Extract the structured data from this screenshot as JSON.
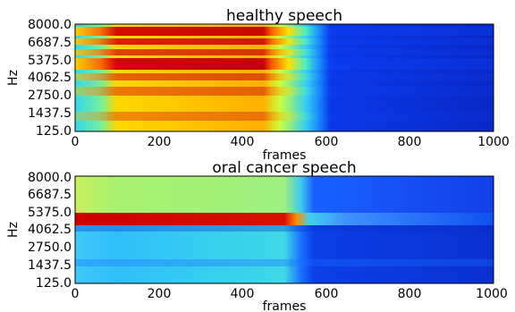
{
  "chart_data": [
    {
      "type": "heatmap",
      "title": "healthy speech",
      "xlabel": "frames",
      "ylabel": "Hz",
      "xlim": [
        0,
        1000
      ],
      "ylim": [
        125.0,
        8000.0
      ],
      "x_ticks": [
        "0",
        "200",
        "400",
        "600",
        "800",
        "1000"
      ],
      "y_ticks": [
        "8000.0",
        "6687.5",
        "5375.0",
        "4062.5",
        "2750.0",
        "1437.5",
        "125.0"
      ],
      "colormap": "jet",
      "grid": false,
      "description_regions": [
        {
          "frames": [
            0,
            60
          ],
          "intensity": "mixed medium (cyan/yellow/red bands)"
        },
        {
          "frames": [
            60,
            480
          ],
          "intensity": "high (red bands at ~7000, ~6000, ~5000 Hz; orange/yellow lower bands)"
        },
        {
          "frames": [
            480,
            600
          ],
          "intensity": "fading (yellow to cyan)"
        },
        {
          "frames": [
            600,
            1000
          ],
          "intensity": "low (blue)"
        }
      ]
    },
    {
      "type": "heatmap",
      "title": "oral cancer speech",
      "xlabel": "frames",
      "ylabel": "Hz",
      "xlim": [
        0,
        1000
      ],
      "ylim": [
        125.0,
        8000.0
      ],
      "x_ticks": [
        "0",
        "200",
        "400",
        "600",
        "800",
        "1000"
      ],
      "y_ticks": [
        "8000.0",
        "6687.5",
        "5375.0",
        "4062.5",
        "2750.0",
        "1437.5",
        "125.0"
      ],
      "colormap": "jet",
      "grid": false,
      "description_regions": [
        {
          "frames": [
            0,
            530
          ],
          "intensity": "medium (yellow/cyan) with strong red band at ~4500 Hz"
        },
        {
          "frames": [
            530,
            1000
          ],
          "intensity": "low (blue), faint band at ~4500 Hz"
        }
      ]
    }
  ]
}
